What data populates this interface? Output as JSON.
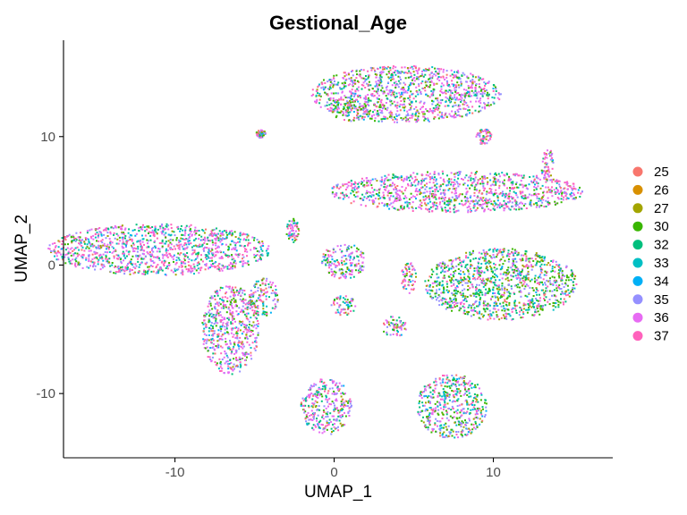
{
  "chart_data": {
    "type": "scatter",
    "title": "Gestional_Age",
    "xlabel": "UMAP_1",
    "ylabel": "UMAP_2",
    "xlim": [
      -17,
      17.5
    ],
    "ylim": [
      -15,
      17.5
    ],
    "xticks": [
      -10,
      0,
      10
    ],
    "yticks": [
      -10,
      0,
      10
    ],
    "grid": false,
    "legend_position": "right",
    "series": [
      {
        "name": "25",
        "color": "#F8766D"
      },
      {
        "name": "26",
        "color": "#D89000"
      },
      {
        "name": "27",
        "color": "#A3A500"
      },
      {
        "name": "30",
        "color": "#39B600"
      },
      {
        "name": "32",
        "color": "#00BF7D"
      },
      {
        "name": "33",
        "color": "#00BFC4"
      },
      {
        "name": "34",
        "color": "#00B0F6"
      },
      {
        "name": "35",
        "color": "#9590FF"
      },
      {
        "name": "36",
        "color": "#E76BF3"
      },
      {
        "name": "37",
        "color": "#FF62BC"
      }
    ],
    "clusters": [
      {
        "center": [
          4.5,
          13.3
        ],
        "radius": [
          6.0,
          2.2
        ],
        "mix": [
          1,
          0,
          1,
          3,
          2,
          1,
          1,
          4,
          5,
          4
        ]
      },
      {
        "center": [
          1.0,
          12.0
        ],
        "radius": [
          1.2,
          0.8
        ],
        "mix": [
          1,
          1,
          2,
          6,
          1,
          1,
          1,
          2,
          2,
          2
        ]
      },
      {
        "center": [
          9.4,
          10.0
        ],
        "radius": [
          0.5,
          0.6
        ],
        "mix": [
          2,
          0,
          1,
          1,
          1,
          1,
          1,
          2,
          3,
          6
        ]
      },
      {
        "center": [
          -4.6,
          10.2
        ],
        "radius": [
          0.3,
          0.3
        ],
        "mix": [
          1,
          0,
          1,
          2,
          2,
          2,
          1,
          3,
          3,
          3
        ]
      },
      {
        "center": [
          7.7,
          5.7
        ],
        "radius": [
          8.0,
          1.6
        ],
        "mix": [
          1,
          0,
          1,
          2,
          3,
          1,
          1,
          3,
          6,
          5
        ]
      },
      {
        "center": [
          13.4,
          7.8
        ],
        "radius": [
          0.4,
          1.3
        ],
        "mix": [
          1,
          0,
          1,
          1,
          1,
          1,
          1,
          2,
          4,
          6
        ]
      },
      {
        "center": [
          -11.0,
          1.2
        ],
        "radius": [
          7.0,
          2.0
        ],
        "mix": [
          1,
          0,
          1,
          2,
          3,
          3,
          1,
          3,
          6,
          5
        ]
      },
      {
        "center": [
          -2.6,
          2.7
        ],
        "radius": [
          0.4,
          1.0
        ],
        "mix": [
          1,
          0,
          2,
          3,
          2,
          1,
          1,
          2,
          3,
          4
        ]
      },
      {
        "center": [
          0.6,
          0.3
        ],
        "radius": [
          1.4,
          1.4
        ],
        "mix": [
          1,
          0,
          1,
          2,
          2,
          1,
          1,
          4,
          5,
          4
        ]
      },
      {
        "center": [
          10.5,
          -1.5
        ],
        "radius": [
          4.8,
          2.8
        ],
        "mix": [
          1,
          0,
          2,
          6,
          5,
          2,
          1,
          4,
          3,
          3
        ]
      },
      {
        "center": [
          -6.5,
          -5.0
        ],
        "radius": [
          1.8,
          3.5
        ],
        "mix": [
          1,
          0,
          1,
          3,
          2,
          1,
          1,
          4,
          6,
          4
        ]
      },
      {
        "center": [
          -4.5,
          -2.5
        ],
        "radius": [
          1.0,
          1.5
        ],
        "mix": [
          1,
          0,
          1,
          3,
          2,
          1,
          1,
          3,
          3,
          3
        ]
      },
      {
        "center": [
          0.6,
          -3.2
        ],
        "radius": [
          0.8,
          0.8
        ],
        "mix": [
          1,
          0,
          2,
          3,
          2,
          1,
          1,
          3,
          3,
          3
        ]
      },
      {
        "center": [
          4.7,
          -1.0
        ],
        "radius": [
          0.5,
          1.2
        ],
        "mix": [
          3,
          0,
          2,
          2,
          2,
          1,
          1,
          2,
          4,
          6
        ]
      },
      {
        "center": [
          3.8,
          -4.8
        ],
        "radius": [
          0.8,
          0.8
        ],
        "mix": [
          2,
          0,
          3,
          2,
          2,
          1,
          1,
          3,
          4,
          4
        ]
      },
      {
        "center": [
          -0.5,
          -11.0
        ],
        "radius": [
          1.6,
          2.2
        ],
        "mix": [
          1,
          0,
          1,
          2,
          3,
          1,
          1,
          5,
          6,
          3
        ]
      },
      {
        "center": [
          7.4,
          -11.0
        ],
        "radius": [
          2.2,
          2.5
        ],
        "mix": [
          1,
          0,
          1,
          4,
          4,
          2,
          1,
          4,
          3,
          3
        ]
      }
    ]
  }
}
